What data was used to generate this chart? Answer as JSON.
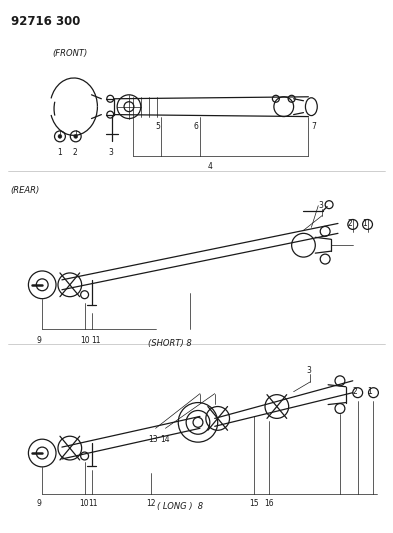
{
  "title": "92716 300",
  "background_color": "#ffffff",
  "text_color": "#1a1a1a",
  "figsize": [
    3.93,
    5.33
  ],
  "dpi": 100,
  "front_label": "(FRONT)",
  "rear_label": "(REAR)",
  "short_label": "(SHORT) 8",
  "long_label": "( LONG )  8",
  "gray_line": "#bbbbbb",
  "lw": 0.9,
  "lw_thin": 0.5,
  "fs_num": 5.5,
  "fs_label": 6.0,
  "fs_title": 8.5
}
